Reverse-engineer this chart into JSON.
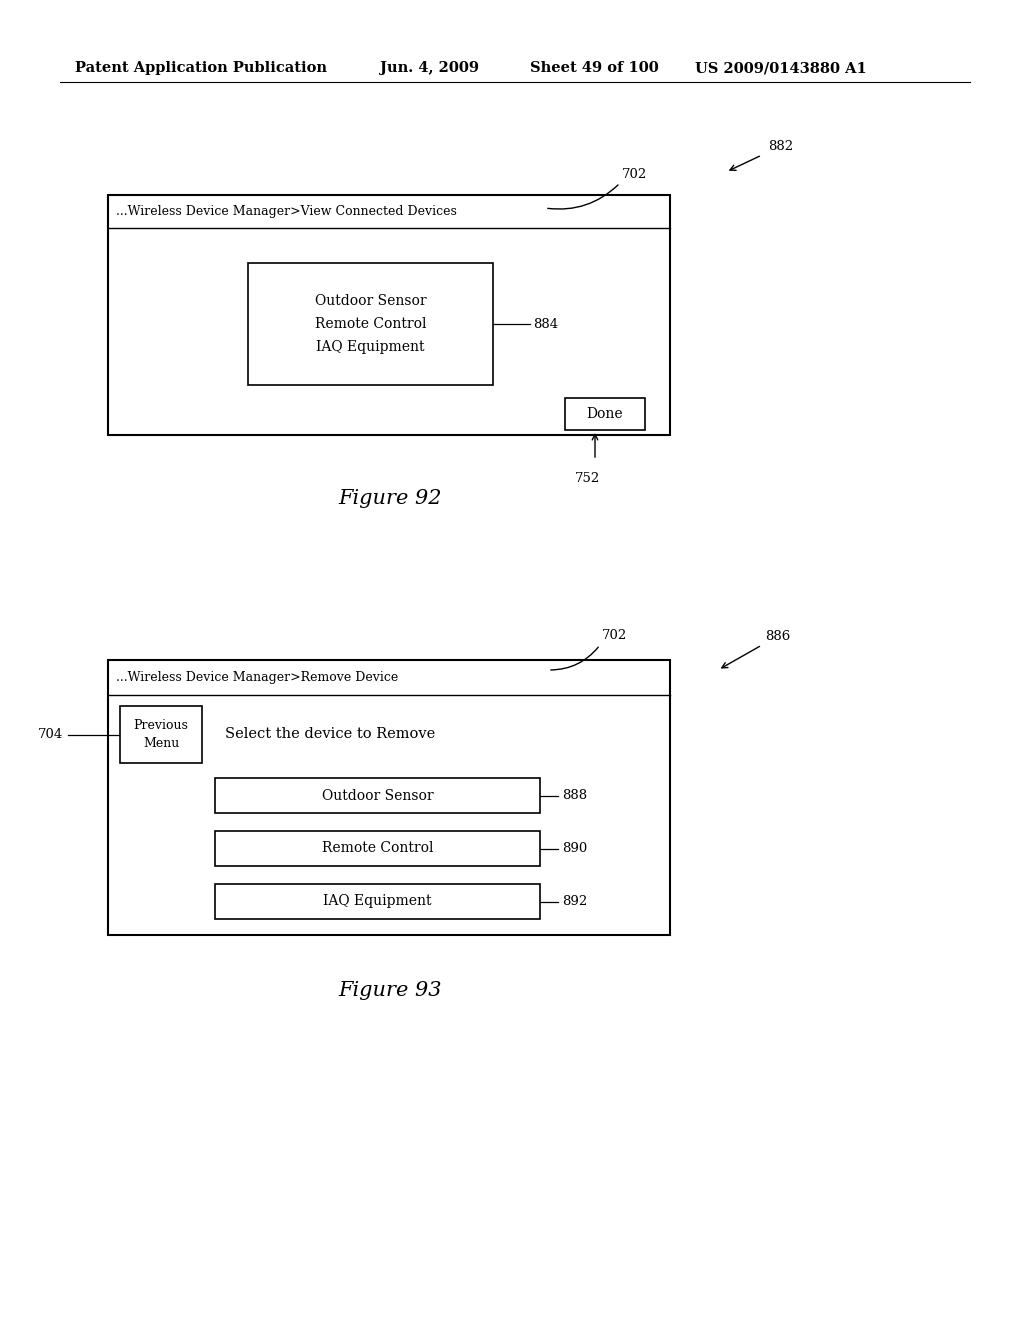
{
  "bg_color": "#ffffff",
  "header_text": "Patent Application Publication",
  "header_date": "Jun. 4, 2009",
  "header_sheet": "Sheet 49 of 100",
  "header_patent": "US 2009/0143880 A1",
  "fig92_title": "Figure 92",
  "fig92_header_text": "...Wireless Device Manager>View Connected Devices",
  "fig92_inner_box_text": "Outdoor Sensor\nRemote Control\nIAQ Equipment",
  "fig92_done_text": "Done",
  "fig92_label_882": "882",
  "fig92_label_702": "702",
  "fig92_label_884": "884",
  "fig92_label_752": "752",
  "fig93_title": "Figure 93",
  "fig93_header_text": "...Wireless Device Manager>Remove Device",
  "fig93_prev_menu_text": "Previous\nMenu",
  "fig93_select_text": "Select the device to Remove",
  "fig93_btn1": "Outdoor Sensor",
  "fig93_btn2": "Remote Control",
  "fig93_btn3": "IAQ Equipment",
  "fig93_label_886": "886",
  "fig93_label_702b": "702",
  "fig93_label_704": "704",
  "fig93_label_888": "888",
  "fig93_label_890": "890",
  "fig93_label_892": "892"
}
